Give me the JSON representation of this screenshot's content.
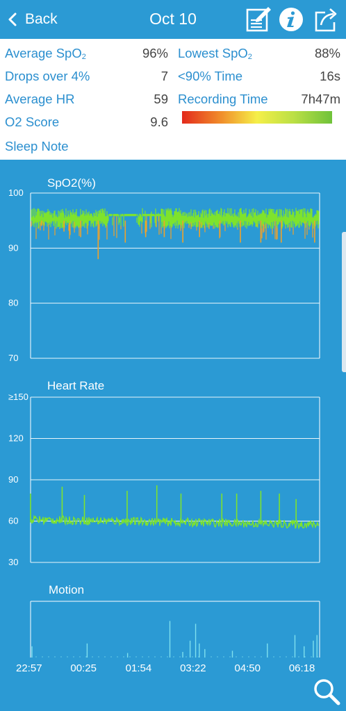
{
  "header": {
    "back_label": "Back",
    "title": "Oct 10",
    "icons": [
      "note-edit-icon",
      "info-icon",
      "share-icon"
    ]
  },
  "summary": {
    "average_spo2_label": "Average SpO",
    "average_spo2_sub": "2",
    "average_spo2_value": "96%",
    "lowest_spo2_label": "Lowest SpO",
    "lowest_spo2_sub": "2",
    "lowest_spo2_value": "88%",
    "drops_label": "Drops over 4%",
    "drops_value": "7",
    "below90_label": "<90% Time",
    "below90_value": "16s",
    "average_hr_label": "Average HR",
    "average_hr_value": "59",
    "recording_label": "Recording Time",
    "recording_value": "7h47m",
    "o2score_label": "O2 Score",
    "o2score_value": "9.6",
    "sleep_note_label": "Sleep Note",
    "score_bar_colors": [
      "#e32a1c",
      "#f08a2a",
      "#f5ef48",
      "#b9df45",
      "#6fc23a"
    ]
  },
  "chart_data": [
    {
      "type": "line",
      "title": "SpO2(%)",
      "ylim": [
        70,
        100
      ],
      "y_ticks": [
        "100",
        "90",
        "80",
        "70"
      ],
      "y_tick_values": [
        100,
        90,
        80,
        70
      ],
      "x_range_hours": [
        0,
        7.783
      ],
      "baseline_level": 95,
      "dips": [
        [
          0.3,
          94
        ],
        [
          0.9,
          93
        ],
        [
          1.35,
          92
        ],
        [
          1.82,
          88
        ],
        [
          2.55,
          91
        ],
        [
          3.1,
          92
        ],
        [
          3.6,
          92
        ],
        [
          4.1,
          91
        ],
        [
          4.55,
          92
        ],
        [
          5.1,
          92
        ],
        [
          5.65,
          91
        ],
        [
          6.2,
          91
        ],
        [
          6.75,
          91
        ],
        [
          7.65,
          91
        ]
      ],
      "flat_segment_hours": [
        2.1,
        3.5
      ],
      "colors": {
        "normal": "#7ee32d",
        "dip": "#f0a22a"
      }
    },
    {
      "type": "line",
      "title": "Heart Rate",
      "ylim": [
        30,
        150
      ],
      "y_ticks": [
        "≥150",
        "120",
        "90",
        "60",
        "30"
      ],
      "y_tick_values": [
        150,
        120,
        90,
        60,
        30
      ],
      "x_range_hours": [
        0,
        7.783
      ],
      "baseline_level": 59,
      "spikes": [
        [
          0.0,
          80
        ],
        [
          0.85,
          85
        ],
        [
          1.45,
          79
        ],
        [
          2.6,
          82
        ],
        [
          3.4,
          86
        ],
        [
          4.05,
          80
        ],
        [
          5.15,
          80
        ],
        [
          5.55,
          80
        ],
        [
          6.2,
          82
        ],
        [
          6.7,
          80
        ],
        [
          7.15,
          76
        ]
      ],
      "color": "#7ee32d"
    },
    {
      "type": "bar",
      "title": "Motion",
      "x_range_hours": [
        0,
        7.783
      ],
      "ylim": [
        0,
        1
      ],
      "events": [
        [
          0.0,
          0.2
        ],
        [
          1.5,
          0.25
        ],
        [
          2.6,
          0.08
        ],
        [
          3.75,
          0.65
        ],
        [
          4.1,
          0.1
        ],
        [
          4.3,
          0.3
        ],
        [
          4.45,
          0.6
        ],
        [
          4.55,
          0.25
        ],
        [
          4.7,
          0.15
        ],
        [
          5.45,
          0.12
        ],
        [
          6.4,
          0.25
        ],
        [
          7.15,
          0.4
        ],
        [
          7.4,
          0.2
        ],
        [
          7.65,
          0.3
        ],
        [
          7.75,
          0.4
        ]
      ],
      "color": "#7fe0ee"
    }
  ],
  "x_axis": {
    "labels": [
      "22:57",
      "00:25",
      "01:54",
      "03:22",
      "04:50",
      "06:18"
    ],
    "label_hours": [
      0,
      1.467,
      2.95,
      4.417,
      5.883,
      7.35
    ]
  },
  "zoom": {
    "icon": "magnifier-icon"
  }
}
